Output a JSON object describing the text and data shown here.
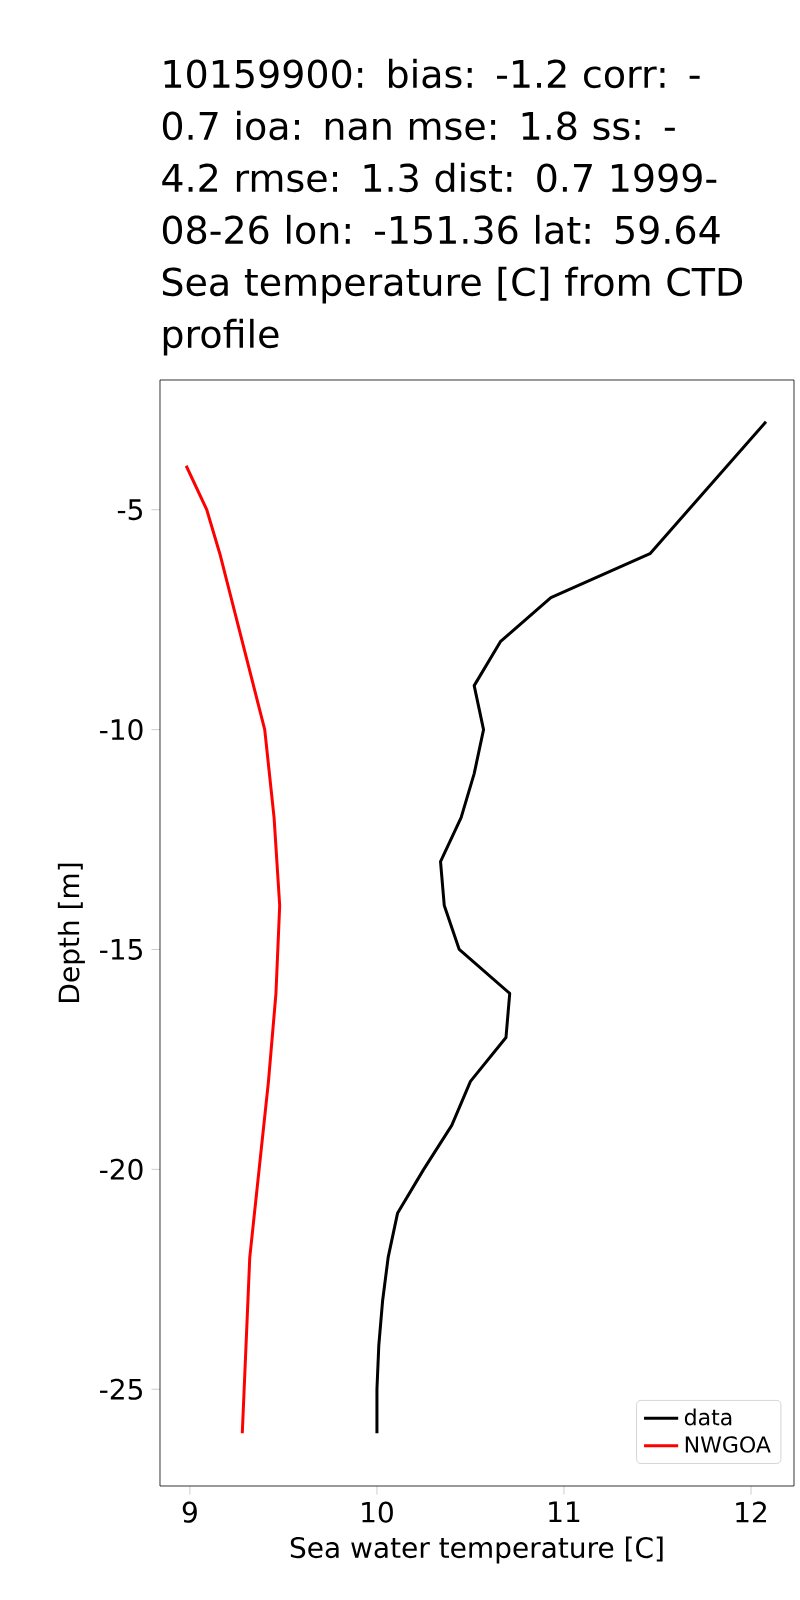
{
  "chart_data": {
    "type": "line",
    "title": "10159900: bias: -1.2  corr: -0.7  ioa: nan  mse: 1.8  ss: -4.2  rmse: 1.3  dist: 0.7 1999-08-26 lon: -151.36 lat: 59.64 Sea temperature [C] from CTD profile",
    "xlabel": "Sea water temperature [C]",
    "ylabel": "Depth [m]",
    "series": [
      {
        "name": "data",
        "color": "#000000",
        "x": [
          12.08,
          11.46,
          10.93,
          10.66,
          10.52,
          10.57,
          10.52,
          10.45,
          10.34,
          10.36,
          10.44,
          10.71,
          10.69,
          10.5,
          10.4,
          10.25,
          10.11,
          10.06,
          10.03,
          10.01,
          10.0,
          10.0
        ],
        "values": [
          -3,
          -6,
          -7,
          -8,
          -9,
          -10,
          -11,
          -12,
          -13,
          -14,
          -15,
          -16,
          -17,
          -18,
          -19,
          -20,
          -21,
          -22,
          -23,
          -24,
          -25,
          -26
        ]
      },
      {
        "name": "NWGOA",
        "color": "#ff0000",
        "x": [
          8.98,
          9.09,
          9.16,
          9.22,
          9.28,
          9.34,
          9.4,
          9.45,
          9.48,
          9.46,
          9.42,
          9.37,
          9.32,
          9.3,
          9.28
        ],
        "values": [
          -4,
          -5,
          -6,
          -7,
          -8,
          -9,
          -10,
          -12,
          -14,
          -16,
          -18,
          -20,
          -22,
          -24,
          -26
        ]
      }
    ],
    "xlim": [
      8.84,
      12.23
    ],
    "ylim": [
      -27.2,
      -2.05
    ],
    "xticks": [
      9,
      10,
      11,
      12
    ],
    "yticks": [
      -5,
      -10,
      -15,
      -20,
      -25
    ],
    "legend": "bottom right",
    "grid": false
  }
}
